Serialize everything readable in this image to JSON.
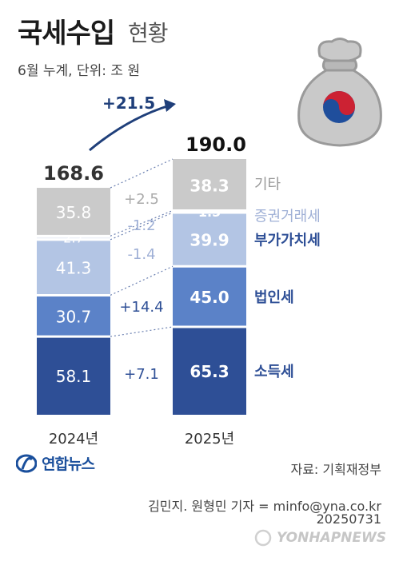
{
  "header": {
    "title_main": "국세수입",
    "title_sub": "현황",
    "subtitle": "6월 누계, 단위: 조 원"
  },
  "chart_data": {
    "type": "bar",
    "stacked": true,
    "categories": [
      "2024년",
      "2025년"
    ],
    "series": [
      {
        "name": "소득세",
        "values": [
          58.1,
          65.3
        ],
        "color": "#2e4f96",
        "label_color": "#2e4f96"
      },
      {
        "name": "법인세",
        "values": [
          30.7,
          45.0
        ],
        "color": "#5b82c8",
        "label_color": "#2e4f96"
      },
      {
        "name": "부가가치세",
        "values": [
          41.3,
          39.9
        ],
        "color": "#b3c5e4",
        "label_color": "#2e4f96"
      },
      {
        "name": "증권거래세",
        "values": [
          2.7,
          1.5
        ],
        "color": "#eef1f8",
        "label_color": "#9fb0d6"
      },
      {
        "name": "기타",
        "values": [
          35.8,
          38.3
        ],
        "color": "#cacaca",
        "label_color": "#999999"
      }
    ],
    "totals": [
      "168.6",
      "190.0"
    ],
    "value_labels": [
      [
        "58.1",
        "30.7",
        "41.3",
        "2.7",
        "35.8"
      ],
      [
        "65.3",
        "45.0",
        "39.9",
        "1.5",
        "38.3"
      ]
    ],
    "changes": [
      "+7.1",
      "+14.4",
      "-1.4",
      "-1.2",
      "+2.5"
    ],
    "total_change": "+21.5"
  },
  "footer": {
    "source": "자료: 기획재정부",
    "credit": "김민지. 원형민 기자 = minfo@yna.co.kr",
    "date": "20250731",
    "logo_text": "연합뉴스",
    "watermark": "YONHAPNEWS"
  },
  "icons": {
    "money_bag": "money-bag-icon",
    "taeguk": "taeguk-icon",
    "arrow": "curved-arrow-icon"
  }
}
